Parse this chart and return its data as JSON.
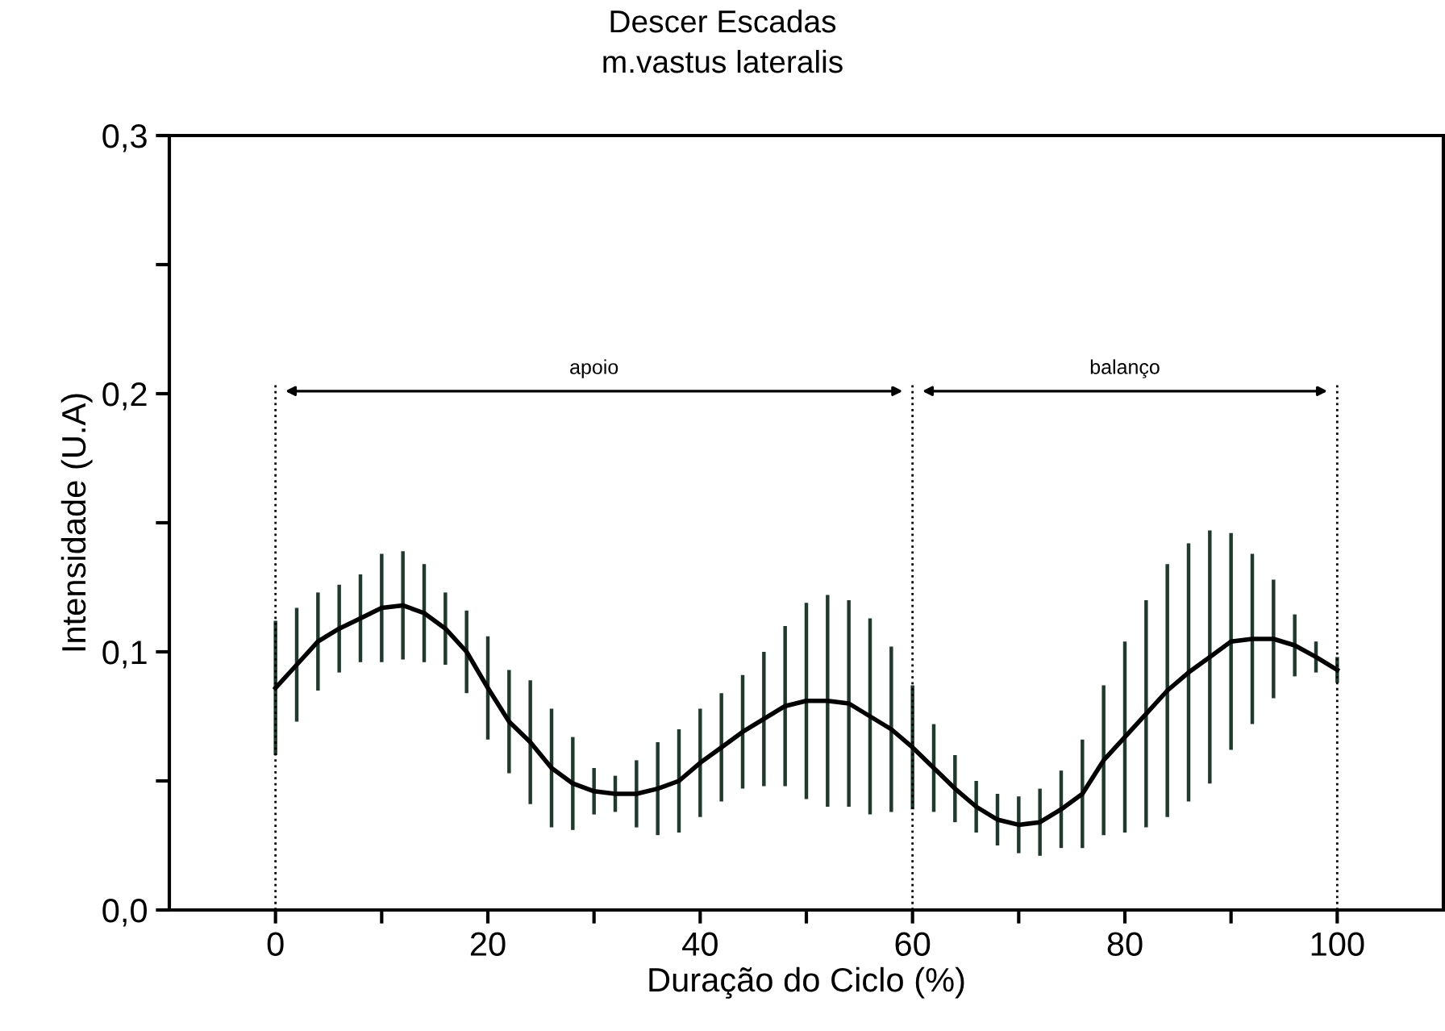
{
  "chart_data": {
    "type": "line",
    "title": "Descer Escadas",
    "subtitle": "m.vastus lateralis",
    "xlabel": "Duração do Ciclo (%)",
    "ylabel": "Intensidade (U.A)",
    "x": [
      0,
      2,
      4,
      6,
      8,
      10,
      12,
      14,
      16,
      18,
      20,
      22,
      24,
      26,
      28,
      30,
      32,
      34,
      36,
      38,
      40,
      42,
      44,
      46,
      48,
      50,
      52,
      54,
      56,
      58,
      60,
      62,
      64,
      66,
      68,
      70,
      72,
      74,
      76,
      78,
      80,
      82,
      84,
      86,
      88,
      90,
      92,
      94,
      96,
      98,
      100
    ],
    "series": [
      {
        "color": "#000000",
        "values": [
          0.086,
          0.095,
          0.104,
          0.109,
          0.113,
          0.117,
          0.118,
          0.115,
          0.109,
          0.1,
          0.086,
          0.073,
          0.065,
          0.055,
          0.049,
          0.046,
          0.045,
          0.045,
          0.047,
          0.05,
          0.057,
          0.063,
          0.069,
          0.074,
          0.079,
          0.081,
          0.081,
          0.08,
          0.075,
          0.07,
          0.063,
          0.055,
          0.047,
          0.04,
          0.035,
          0.033,
          0.034,
          0.039,
          0.045,
          0.058,
          0.067,
          0.076,
          0.085,
          0.092,
          0.098,
          0.104,
          0.105,
          0.105,
          0.1025,
          0.098,
          0.093
        ],
        "errors": [
          0.026,
          0.022,
          0.019,
          0.017,
          0.017,
          0.021,
          0.021,
          0.019,
          0.014,
          0.016,
          0.02,
          0.02,
          0.024,
          0.023,
          0.018,
          0.009,
          0.007,
          0.013,
          0.018,
          0.02,
          0.021,
          0.021,
          0.022,
          0.026,
          0.031,
          0.038,
          0.041,
          0.04,
          0.038,
          0.032,
          0.024,
          0.017,
          0.013,
          0.01,
          0.01,
          0.011,
          0.013,
          0.015,
          0.021,
          0.029,
          0.037,
          0.044,
          0.049,
          0.05,
          0.049,
          0.042,
          0.033,
          0.023,
          0.012,
          0.006,
          0.005
        ]
      }
    ],
    "xlim": [
      -10,
      110
    ],
    "xticks": [
      {
        "value": 0,
        "label": "0"
      },
      {
        "value": 10,
        "label": null
      },
      {
        "value": 20,
        "label": "20"
      },
      {
        "value": 30,
        "label": null
      },
      {
        "value": 40,
        "label": "40"
      },
      {
        "value": 50,
        "label": null
      },
      {
        "value": 60,
        "label": "60"
      },
      {
        "value": 70,
        "label": null
      },
      {
        "value": 80,
        "label": "80"
      },
      {
        "value": 90,
        "label": null
      },
      {
        "value": 100,
        "label": "100"
      }
    ],
    "ylim": [
      0,
      0.3
    ],
    "yticks": [
      {
        "value": 0,
        "label": "0,0"
      },
      {
        "value": 0.05,
        "label": null
      },
      {
        "value": 0.1,
        "label": "0,1"
      },
      {
        "value": 0.15,
        "label": null
      },
      {
        "value": 0.2,
        "label": "0,2"
      },
      {
        "value": 0.25,
        "label": null
      },
      {
        "value": 0.3,
        "label": "0,3"
      }
    ],
    "ref_lines": [
      {
        "axis": "x",
        "value": 0,
        "line_style": "dotted"
      },
      {
        "axis": "x",
        "value": 60,
        "line_style": "dotted"
      },
      {
        "axis": "x",
        "value": 100,
        "line_style": "dotted"
      }
    ],
    "annotations": [
      "apoio",
      "balanço"
    ],
    "marker": "none",
    "line_style": "solid",
    "grid": false,
    "legend": false
  }
}
